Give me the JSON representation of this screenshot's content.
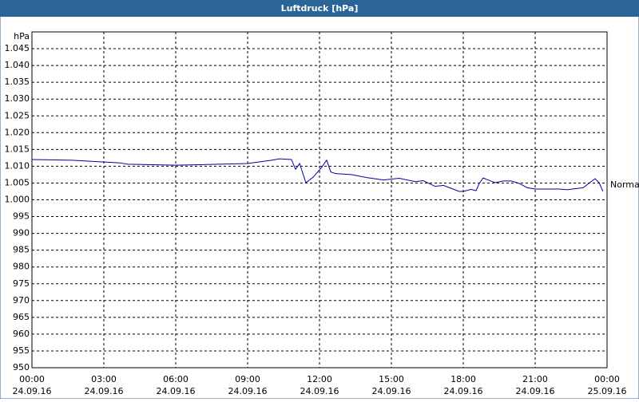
{
  "chart_data": {
    "type": "line",
    "title": "Luftdruck [hPa]",
    "y_label": "hPa",
    "x": [
      0,
      1.67,
      3.67,
      4,
      6,
      9,
      10,
      10.33,
      10.83,
      11,
      11.17,
      11.43,
      11.73,
      12.07,
      12.3,
      12.47,
      12.67,
      13.33,
      14,
      14.67,
      15.33,
      16,
      16.33,
      16.83,
      17.17,
      17.83,
      18,
      18.33,
      18.53,
      18.67,
      18.83,
      19.07,
      19.33,
      19.67,
      20,
      20.33,
      20.67,
      21,
      22,
      22.33,
      23,
      23.5,
      23.67,
      23.83
    ],
    "series": [
      {
        "name": "Normal",
        "color": "#0000a0",
        "values": [
          1012.0,
          1011.8,
          1011.0,
          1010.6,
          1010.3,
          1010.8,
          1011.8,
          1012.2,
          1012.0,
          1009.1,
          1010.8,
          1005.1,
          1006.7,
          1009.5,
          1011.8,
          1008.3,
          1007.8,
          1007.5,
          1006.6,
          1005.9,
          1006.4,
          1005.4,
          1005.7,
          1004.0,
          1004.3,
          1002.5,
          1002.5,
          1003.1,
          1002.7,
          1004.9,
          1006.5,
          1005.8,
          1005.1,
          1005.6,
          1005.6,
          1004.9,
          1003.6,
          1003.2,
          1003.2,
          1003.0,
          1003.6,
          1006.3,
          1005.1,
          1002.5
        ]
      }
    ],
    "xlim": [
      0,
      24
    ],
    "xticks": [
      {
        "value": 0,
        "label": "00:00",
        "date": "24.09.16"
      },
      {
        "value": 3,
        "label": "03:00",
        "date": "24.09.16"
      },
      {
        "value": 6,
        "label": "06:00",
        "date": "24.09.16"
      },
      {
        "value": 9,
        "label": "09:00",
        "date": "24.09.16"
      },
      {
        "value": 12,
        "label": "12:00",
        "date": "24.09.16"
      },
      {
        "value": 15,
        "label": "15:00",
        "date": "24.09.16"
      },
      {
        "value": 18,
        "label": "18:00",
        "date": "24.09.16"
      },
      {
        "value": 21,
        "label": "21:00",
        "date": "24.09.16"
      },
      {
        "value": 24,
        "label": "00:00",
        "date": "25.09.16"
      }
    ],
    "ylim": [
      950,
      1050
    ],
    "yticks": [
      950,
      955,
      960,
      965,
      970,
      975,
      980,
      985,
      990,
      995,
      {
        "value": 1000,
        "label": "1.000"
      },
      {
        "value": 1005,
        "label": "1.005"
      },
      {
        "value": 1010,
        "label": "1.010"
      },
      {
        "value": 1015,
        "label": "1.015"
      },
      {
        "value": 1020,
        "label": "1.020"
      },
      {
        "value": 1025,
        "label": "1.025"
      },
      {
        "value": 1030,
        "label": "1.030"
      },
      {
        "value": 1035,
        "label": "1.035"
      },
      {
        "value": 1040,
        "label": "1.040"
      },
      {
        "value": 1045,
        "label": "1.045"
      }
    ],
    "grid": true
  }
}
